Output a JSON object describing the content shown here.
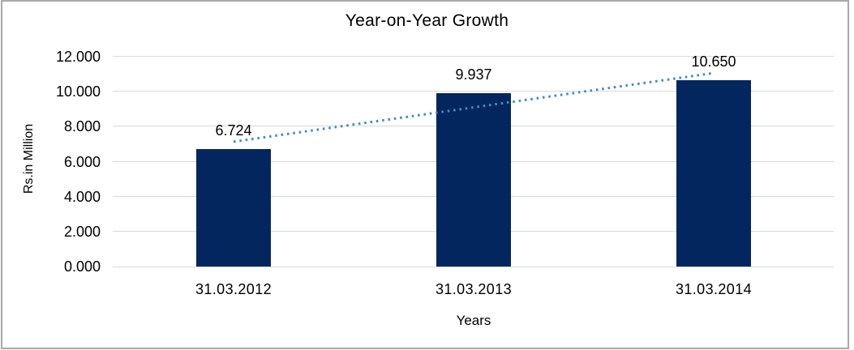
{
  "chart_data": {
    "type": "bar",
    "title": "Year-on-Year Growth",
    "xlabel": "Years",
    "ylabel": "Rs.in Million",
    "categories": [
      "31.03.2012",
      "31.03.2013",
      "31.03.2014"
    ],
    "values": [
      6.724,
      9.937,
      10.65
    ],
    "data_labels": [
      "6.724",
      "9.937",
      "10.650"
    ],
    "ylim": [
      0,
      12
    ],
    "ytick_labels": [
      "0.000",
      "2.000",
      "4.000",
      "6.000",
      "8.000",
      "10.000",
      "12.000"
    ],
    "grid": true,
    "legend_position": "none",
    "trendline": {
      "type": "linear",
      "style": "dotted"
    },
    "colors": {
      "bar": "#04265e",
      "trendline": "#4c86c5",
      "gridline": "#d9d9d9",
      "text": "#000000",
      "frame_border": "#a9a9a9",
      "background": "#ffffff"
    }
  }
}
